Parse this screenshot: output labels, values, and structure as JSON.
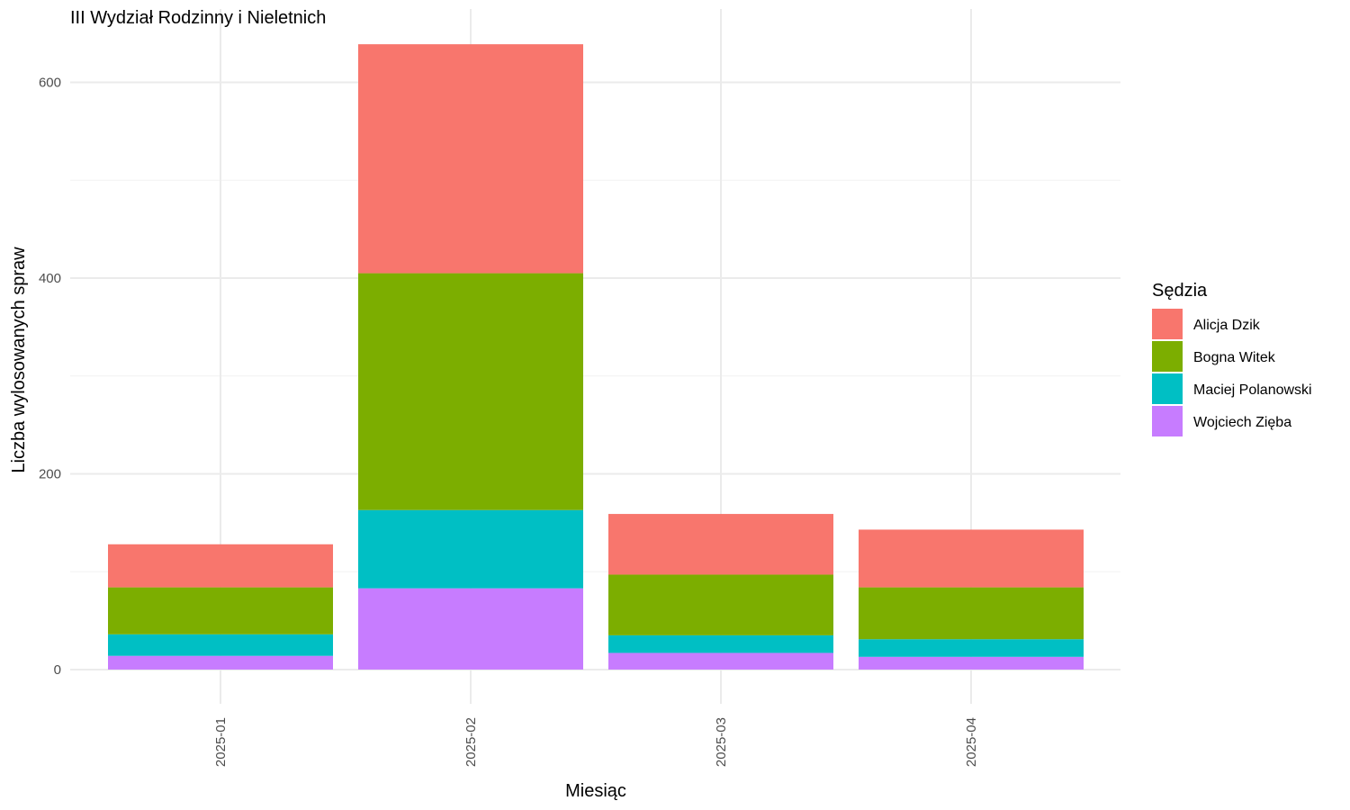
{
  "chart_data": {
    "type": "bar",
    "stacked": true,
    "title": "III Wydział Rodzinny i Nieletnich",
    "xlabel": "Miesiąc",
    "ylabel": "Liczba wylosowanych spraw",
    "ylim": [
      -35,
      675
    ],
    "yticks": [
      0,
      200,
      400,
      600
    ],
    "categories": [
      "2025-01",
      "2025-02",
      "2025-03",
      "2025-04"
    ],
    "legend_title": "Sędzia",
    "legend_position": "right",
    "grid": true,
    "series": [
      {
        "name": "Wojciech Zięba",
        "color": "#C77CFF",
        "values": [
          14,
          83,
          17,
          13
        ]
      },
      {
        "name": "Maciej Polanowski",
        "color": "#00BFC4",
        "values": [
          22,
          80,
          18,
          18
        ]
      },
      {
        "name": "Bogna Witek",
        "color": "#7CAE00",
        "values": [
          48,
          242,
          62,
          53
        ]
      },
      {
        "name": "Alicja Dzik",
        "color": "#F8766D",
        "values": [
          44,
          234,
          62,
          59
        ]
      }
    ]
  }
}
